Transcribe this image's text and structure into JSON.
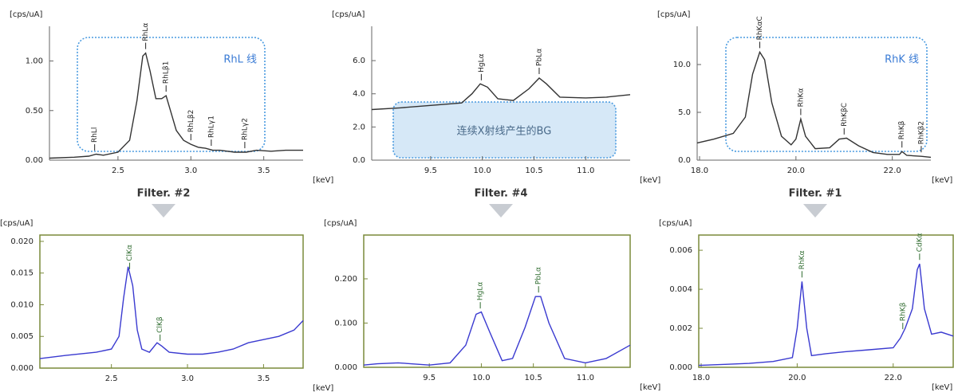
{
  "filters": [
    "Filter. #2",
    "Filter. #4",
    "Filter. #1"
  ],
  "box_labels": [
    "RhL 线",
    "连续X射线产生的BG",
    "RhK 线"
  ],
  "chart_data": [
    {
      "type": "line",
      "y_label": "[cps/uA]",
      "x_label": "[keV]",
      "color": "#333333",
      "xlim": [
        2.03,
        3.77
      ],
      "ylim": [
        0,
        1.35
      ],
      "xticks": [
        2.5,
        {
          "value": 3,
          "label": "3.0"
        },
        3.5
      ],
      "yticks": [
        {
          "value": 0,
          "label": "0.00"
        },
        {
          "value": 0.5,
          "label": "0.50"
        },
        {
          "value": 1,
          "label": "1.00"
        }
      ],
      "x": [
        2.03,
        2.2,
        2.3,
        2.35,
        2.4,
        2.5,
        2.58,
        2.63,
        2.67,
        2.69,
        2.72,
        2.76,
        2.8,
        2.83,
        2.86,
        2.9,
        2.95,
        3.0,
        3.05,
        3.1,
        3.15,
        3.2,
        3.3,
        3.38,
        3.45,
        3.55,
        3.65,
        3.77
      ],
      "values": [
        0.02,
        0.03,
        0.04,
        0.06,
        0.05,
        0.08,
        0.2,
        0.6,
        1.05,
        1.08,
        0.9,
        0.62,
        0.62,
        0.65,
        0.5,
        0.3,
        0.2,
        0.16,
        0.13,
        0.12,
        0.1,
        0.1,
        0.08,
        0.08,
        0.1,
        0.09,
        0.1,
        0.1
      ],
      "annotations": [
        {
          "text": "RhLl",
          "x": 2.34
        },
        {
          "text": "RhLα",
          "x": 2.69
        },
        {
          "text": "RhLβ1",
          "x": 2.83
        },
        {
          "text": "RhLβ2",
          "x": 3.0
        },
        {
          "text": "RhLγ1",
          "x": 3.14
        },
        {
          "text": "RhLγ2",
          "x": 3.37
        }
      ]
    },
    {
      "type": "line",
      "y_label": "[cps/uA]",
      "x_label": "[keV]",
      "color": "#333333",
      "xlim": [
        8.93,
        11.43
      ],
      "ylim": [
        0,
        8.07
      ],
      "xticks": [
        9.5,
        {
          "value": 10,
          "label": "10.0"
        },
        10.5,
        {
          "value": 11,
          "label": "11.0"
        }
      ],
      "yticks": [
        {
          "value": 0,
          "label": "0.0"
        },
        {
          "value": 2,
          "label": "2.0"
        },
        {
          "value": 4,
          "label": "4.0"
        },
        {
          "value": 6,
          "label": "6.0"
        }
      ],
      "x": [
        8.93,
        9.2,
        9.5,
        9.8,
        9.9,
        9.98,
        10.05,
        10.15,
        10.3,
        10.45,
        10.55,
        10.62,
        10.75,
        11.0,
        11.2,
        11.43
      ],
      "values": [
        3.05,
        3.15,
        3.3,
        3.45,
        4.0,
        4.6,
        4.4,
        3.7,
        3.6,
        4.3,
        4.95,
        4.6,
        3.8,
        3.75,
        3.8,
        3.95
      ],
      "annotations": [
        {
          "text": "HgLα",
          "x": 9.99
        },
        {
          "text": "PbLα",
          "x": 10.55
        }
      ]
    },
    {
      "type": "line",
      "y_label": "[cps/uA]",
      "x_label": "[keV]",
      "color": "#333333",
      "xlim": [
        17.95,
        22.8
      ],
      "ylim": [
        0,
        14
      ],
      "xticks": [
        {
          "value": 18,
          "label": "18.0"
        },
        {
          "value": 20,
          "label": "20.0"
        },
        {
          "value": 22,
          "label": "22.0"
        }
      ],
      "yticks": [
        {
          "value": 0,
          "label": "0.0"
        },
        {
          "value": 5,
          "label": "5.0"
        },
        {
          "value": 10,
          "label": "10.0"
        }
      ],
      "x": [
        17.95,
        18.3,
        18.7,
        18.95,
        19.1,
        19.25,
        19.35,
        19.5,
        19.7,
        19.9,
        20.0,
        20.1,
        20.2,
        20.4,
        20.7,
        20.9,
        21.05,
        21.3,
        21.6,
        21.9,
        22.15,
        22.2,
        22.3,
        22.6,
        22.8
      ],
      "values": [
        1.8,
        2.2,
        2.8,
        4.5,
        9,
        11.3,
        10.5,
        6,
        2.5,
        1.6,
        2.2,
        4.3,
        2.5,
        1.2,
        1.3,
        2.2,
        2.3,
        1.5,
        0.8,
        0.6,
        0.6,
        0.9,
        0.5,
        0.4,
        0.3
      ],
      "annotations": [
        {
          "text": "RhKαC",
          "x": 19.25
        },
        {
          "text": "RhKα",
          "x": 20.1
        },
        {
          "text": "RhKβC",
          "x": 21.0
        },
        {
          "text": "RhKβ",
          "x": 22.2
        },
        {
          "text": "RhKβ2",
          "x": 22.6
        }
      ]
    },
    {
      "type": "line",
      "y_label": "[cps/uA]",
      "x_label": "[keV]",
      "color": "#3a3ad0",
      "xlim": [
        2.03,
        3.76
      ],
      "ylim": [
        0,
        0.021
      ],
      "xticks": [
        2.5,
        {
          "value": 3,
          "label": "3.0"
        },
        3.5
      ],
      "yticks": [
        {
          "value": 0,
          "label": "0.000"
        },
        0.005,
        {
          "value": 0.01,
          "label": "0.010"
        },
        0.015,
        {
          "value": 0.02,
          "label": "0.020"
        }
      ],
      "x": [
        2.03,
        2.2,
        2.4,
        2.5,
        2.55,
        2.58,
        2.61,
        2.64,
        2.67,
        2.7,
        2.75,
        2.8,
        2.83,
        2.88,
        3.0,
        3.1,
        3.2,
        3.3,
        3.4,
        3.5,
        3.6,
        3.7,
        3.76
      ],
      "values": [
        0.0015,
        0.002,
        0.0025,
        0.003,
        0.005,
        0.011,
        0.016,
        0.013,
        0.006,
        0.003,
        0.0025,
        0.004,
        0.0035,
        0.0025,
        0.0022,
        0.0022,
        0.0025,
        0.003,
        0.004,
        0.0045,
        0.005,
        0.006,
        0.0075
      ],
      "annotations": [
        {
          "text": "ClKα",
          "x": 2.62
        },
        {
          "text": "ClKβ",
          "x": 2.82
        }
      ]
    },
    {
      "type": "line",
      "y_label": "[cps/uA]",
      "x_label": "[keV]",
      "color": "#3a3ad0",
      "xlim": [
        8.87,
        11.43
      ],
      "ylim": [
        0,
        0.299
      ],
      "xticks": [
        9.5,
        {
          "value": 10,
          "label": "10.0"
        },
        10.5,
        {
          "value": 11,
          "label": "11.0"
        }
      ],
      "yticks": [
        {
          "value": 0,
          "label": "0.000"
        },
        {
          "value": 0.1,
          "label": "0.100"
        },
        {
          "value": 0.2,
          "label": "0.200"
        }
      ],
      "x": [
        8.87,
        9.0,
        9.2,
        9.5,
        9.7,
        9.85,
        9.95,
        10.0,
        10.08,
        10.2,
        10.3,
        10.42,
        10.52,
        10.57,
        10.65,
        10.8,
        11.0,
        11.2,
        11.43
      ],
      "values": [
        0.005,
        0.008,
        0.01,
        0.005,
        0.01,
        0.05,
        0.12,
        0.125,
        0.08,
        0.015,
        0.02,
        0.09,
        0.16,
        0.16,
        0.1,
        0.02,
        0.01,
        0.02,
        0.05
      ],
      "annotations": [
        {
          "text": "HgLα",
          "x": 9.99
        },
        {
          "text": "PbLα",
          "x": 10.55
        }
      ]
    },
    {
      "type": "line",
      "y_label": "[cps/uA]",
      "x_label": "[keV]",
      "color": "#3a3ad0",
      "xlim": [
        17.95,
        23.25
      ],
      "ylim": [
        0,
        0.00678
      ],
      "xticks": [
        {
          "value": 18,
          "label": "18.0"
        },
        {
          "value": 20,
          "label": "20.0"
        },
        {
          "value": 22,
          "label": "22.0"
        }
      ],
      "yticks": [
        {
          "value": 0,
          "label": "0.000"
        },
        0.002,
        0.004,
        0.006
      ],
      "x": [
        17.95,
        18.5,
        19.0,
        19.5,
        19.9,
        20.0,
        20.1,
        20.2,
        20.3,
        20.6,
        21.0,
        21.5,
        22.0,
        22.15,
        22.25,
        22.4,
        22.5,
        22.55,
        22.65,
        22.8,
        23.0,
        23.25
      ],
      "values": [
        0.0001,
        0.00015,
        0.0002,
        0.0003,
        0.0005,
        0.002,
        0.0044,
        0.002,
        0.0006,
        0.0007,
        0.0008,
        0.0009,
        0.001,
        0.0015,
        0.002,
        0.003,
        0.005,
        0.0053,
        0.003,
        0.0017,
        0.0018,
        0.0016
      ],
      "annotations": [
        {
          "text": "RhKα",
          "x": 20.1
        },
        {
          "text": "RhKβ",
          "x": 22.2
        },
        {
          "text": "CdKα",
          "x": 22.55
        }
      ]
    }
  ]
}
